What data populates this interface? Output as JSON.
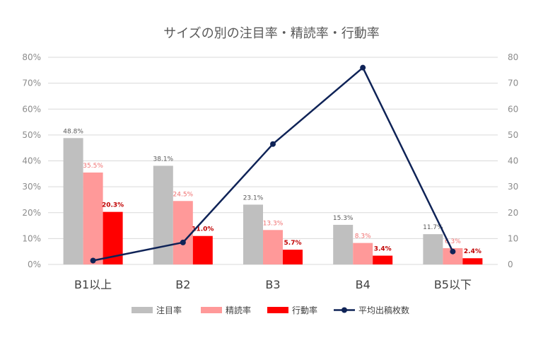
{
  "chart_data": {
    "type": "bar",
    "title": "サイズの別の注目率・精読率・行動率",
    "categories": [
      "B1以上",
      "B2",
      "B3",
      "B4",
      "B5以下"
    ],
    "y_left": {
      "ylim": [
        0,
        80
      ],
      "ticks": [
        "0%",
        "10%",
        "20%",
        "30%",
        "40%",
        "50%",
        "60%",
        "70%",
        "80%"
      ]
    },
    "y_right": {
      "ylim": [
        0,
        80
      ],
      "ticks": [
        "0",
        "10",
        "20",
        "30",
        "40",
        "50",
        "60",
        "70",
        "80"
      ]
    },
    "grid": true,
    "legend_position": "bottom",
    "series": [
      {
        "name": "注目率",
        "type": "bar",
        "axis": "left",
        "color": "#bfbfbf",
        "label_color": "#595959",
        "values": [
          48.8,
          38.1,
          23.1,
          15.3,
          11.7
        ],
        "labels": [
          "48.8%",
          "38.1%",
          "23.1%",
          "15.3%",
          "11.7%"
        ]
      },
      {
        "name": "精読率",
        "type": "bar",
        "axis": "left",
        "color": "#ff9999",
        "label_color": "#f07070",
        "values": [
          35.5,
          24.5,
          13.3,
          8.3,
          6.3
        ],
        "labels": [
          "35.5%",
          "24.5%",
          "13.3%",
          "8.3%",
          "6.3%"
        ]
      },
      {
        "name": "行動率",
        "type": "bar",
        "axis": "left",
        "color": "#ff0000",
        "label_color": "#c00000",
        "values": [
          20.3,
          11.0,
          5.7,
          3.4,
          2.4
        ],
        "labels": [
          "20.3%",
          "11.0%",
          "5.7%",
          "3.4%",
          "2.4%"
        ]
      },
      {
        "name": "平均出稿枚数",
        "type": "line",
        "axis": "right",
        "color": "#0f2357",
        "values": [
          1.5,
          8.5,
          46.5,
          76,
          5
        ]
      }
    ]
  }
}
